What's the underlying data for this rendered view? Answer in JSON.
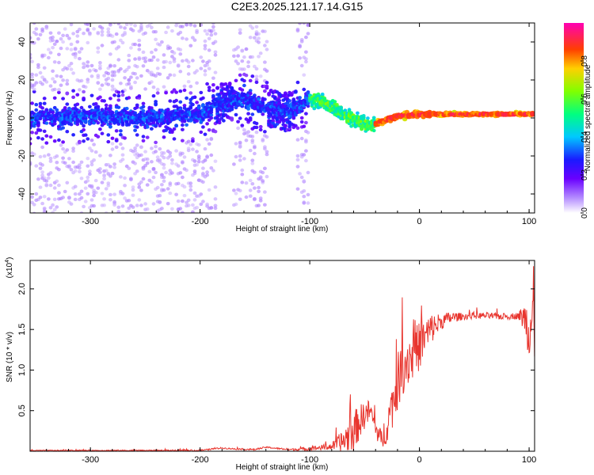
{
  "title": "C2E3.2025.121.17.14.G15",
  "colors": {
    "snr_line": "#e8352e",
    "axis": "#000000",
    "colormap": [
      "#ffffff",
      "#b48cff",
      "#7a1cff",
      "#2a2aff",
      "#00c8ff",
      "#00ff70",
      "#c8ff00",
      "#ffb400",
      "#ff2000",
      "#ff00b4"
    ]
  },
  "chart_data": [
    {
      "type": "heatmap",
      "name": "spectrogram",
      "xlabel": "Height of straight line (km)",
      "ylabel": "Frequency (Hz)",
      "xlim": [
        -355,
        105
      ],
      "ylim": [
        -50,
        50
      ],
      "xticks": [
        -300,
        -200,
        -100,
        0,
        100
      ],
      "xtick_labels": [
        "-300",
        "-200",
        "-100",
        "0",
        "100"
      ],
      "yticks": [
        -40,
        -20,
        0,
        20,
        40
      ],
      "ytick_labels": [
        "-40",
        "-20",
        "0",
        "20",
        "40"
      ],
      "colorbar": {
        "label": "Normalized spectral amplitude",
        "range": [
          0,
          1
        ],
        "ticks": [
          0.0,
          0.2,
          0.4,
          0.6,
          0.8
        ],
        "tick_labels": [
          "0.0",
          "0.2",
          "0.4",
          "0.6",
          "0.8"
        ]
      },
      "ridge": {
        "x": [
          -355,
          -300,
          -250,
          -200,
          -180,
          -160,
          -140,
          -120,
          -100,
          -90,
          -80,
          -70,
          -60,
          -50,
          -45,
          -40,
          -30,
          -20,
          -10,
          0,
          20,
          40,
          60,
          80,
          100,
          105
        ],
        "y": [
          0,
          1,
          0,
          2,
          8,
          10,
          5,
          3,
          10,
          9,
          6,
          2,
          -1,
          -3,
          -4,
          -3,
          -1,
          1,
          1.5,
          2,
          2,
          2,
          2,
          2,
          2,
          2
        ]
      },
      "grid": false
    },
    {
      "type": "line",
      "name": "snr",
      "xlabel": "Height of straight line (km)",
      "ylabel": "SNR (10 * v/v)",
      "y_multiplier_label": "(x10",
      "y_multiplier_exp": "4",
      "y_multiplier_close": ")",
      "xlim": [
        -355,
        105
      ],
      "ylim": [
        0,
        2.35
      ],
      "xticks": [
        -300,
        -200,
        -100,
        0,
        100
      ],
      "xtick_labels": [
        "-300",
        "-200",
        "-100",
        "0",
        "100"
      ],
      "yticks": [
        0.5,
        1.0,
        1.5,
        2.0
      ],
      "ytick_labels": [
        "0.5",
        "1.0",
        "1.5",
        "2.0"
      ],
      "envelope": {
        "x": [
          -355,
          -200,
          -180,
          -170,
          -150,
          -140,
          -120,
          -100,
          -80,
          -70,
          -60,
          -50,
          -45,
          -40,
          -35,
          -30,
          -25,
          -20,
          -15,
          -10,
          -5,
          0,
          10,
          20,
          30,
          40,
          50,
          60,
          70,
          80,
          90,
          95,
          98,
          100,
          102,
          104,
          105
        ],
        "y": [
          0.01,
          0.01,
          0.04,
          0.03,
          0.02,
          0.05,
          0.02,
          0.03,
          0.06,
          0.12,
          0.25,
          0.45,
          0.5,
          0.3,
          0.12,
          0.3,
          0.55,
          0.85,
          1.05,
          1.15,
          1.2,
          1.3,
          1.5,
          1.6,
          1.65,
          1.66,
          1.67,
          1.67,
          1.66,
          1.66,
          1.67,
          1.65,
          1.6,
          1.3,
          1.8,
          2.3,
          1.0
        ]
      },
      "noise_amplitude": {
        "x": [
          -355,
          -120,
          -80,
          -60,
          -40,
          -30,
          -20,
          -10,
          0,
          20,
          40,
          90,
          100,
          105
        ],
        "y": [
          0.005,
          0.01,
          0.04,
          0.25,
          0.1,
          0.2,
          0.35,
          0.35,
          0.3,
          0.1,
          0.04,
          0.04,
          0.3,
          0.5
        ]
      },
      "grid": false
    }
  ]
}
